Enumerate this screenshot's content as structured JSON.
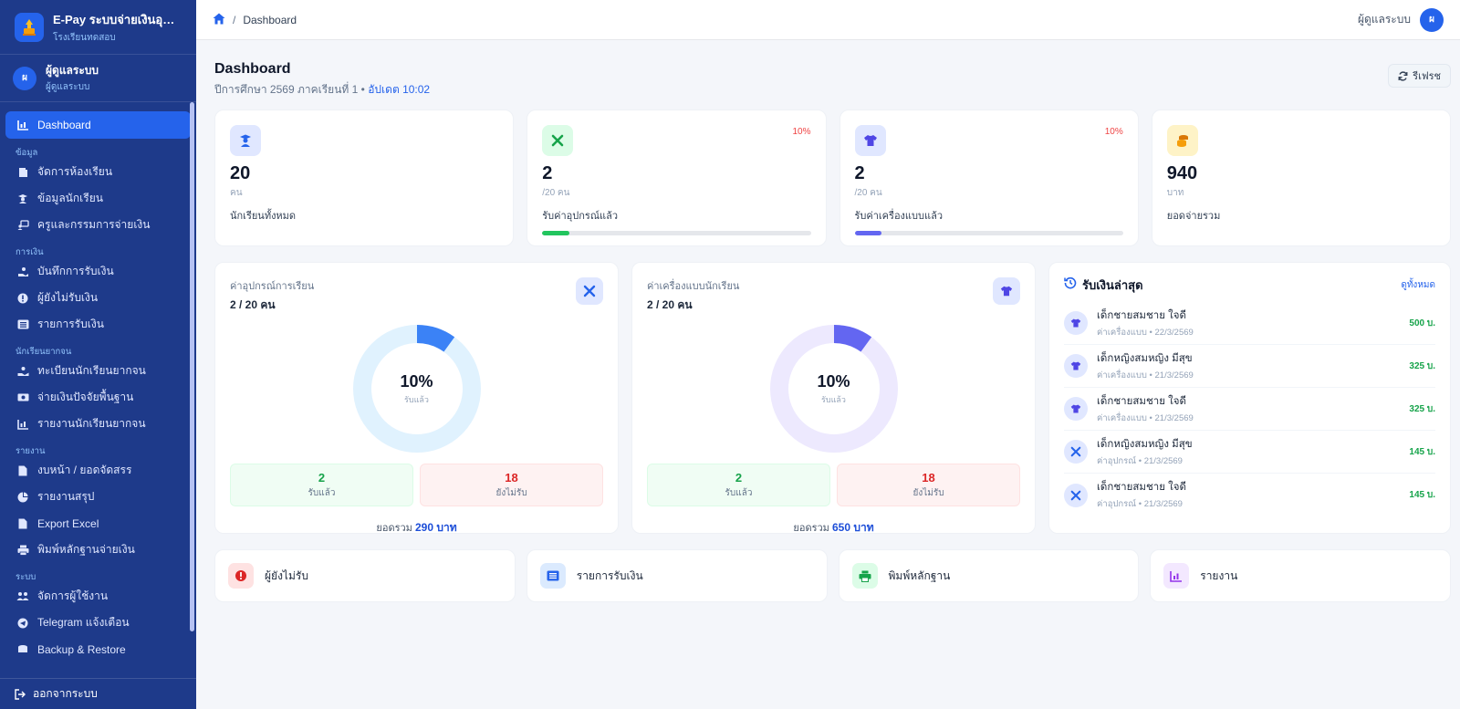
{
  "brand": {
    "title": "E-Pay ระบบจ่ายเงินอุดหนุ...",
    "subtitle": "โรงเรียนทดสอบ"
  },
  "sidebar_user": {
    "initial": "ผ",
    "name": "ผู้ดูแลระบบ",
    "role": "ผู้ดูแลระบบ"
  },
  "nav": {
    "dashboard": "Dashboard",
    "sec_data": "ข้อมูล",
    "classrooms": "จัดการห้องเรียน",
    "students": "ข้อมูลนักเรียน",
    "committee": "ครูและกรรมการจ่ายเงิน",
    "sec_finance": "การเงิน",
    "record_receive": "บันทึกการรับเงิน",
    "not_received": "ผู้ยังไม่รับเงิน",
    "receive_list": "รายการรับเงิน",
    "sec_poor": "นักเรียนยากจน",
    "poor_register": "ทะเบียนนักเรียนยากจน",
    "poor_pay": "จ่ายเงินปัจจัยพื้นฐาน",
    "poor_report": "รายงานนักเรียนยากจน",
    "sec_report": "รายงาน",
    "budget": "งบหน้า / ยอดจัดสรร",
    "summary": "รายงานสรุป",
    "export": "Export Excel",
    "print_evidence": "พิมพ์หลักฐานจ่ายเงิน",
    "sec_system": "ระบบ",
    "users": "จัดการผู้ใช้งาน",
    "telegram": "Telegram แจ้งเตือน",
    "backup": "Backup & Restore",
    "logout": "ออกจากระบบ"
  },
  "topbar": {
    "crumb": "Dashboard",
    "user": "ผู้ดูแลระบบ",
    "initial": "ผ"
  },
  "header": {
    "title": "Dashboard",
    "subtitle": "ปีการศึกษา 2569 ภาคเรียนที่ 1 •",
    "updated": "อัปเดต 10:02",
    "refresh": "รีเฟรช"
  },
  "stats": [
    {
      "value": "20",
      "unit": "คน",
      "label": "นักเรียนทั้งหมด"
    },
    {
      "value": "2",
      "unit": "/20 คน",
      "label": "รับค่าอุปกรณ์แล้ว",
      "pct": "10%",
      "progress": 0.1,
      "color": "#22c55e"
    },
    {
      "value": "2",
      "unit": "/20 คน",
      "label": "รับค่าเครื่องแบบแล้ว",
      "pct": "10%",
      "progress": 0.1,
      "color": "#6366f1"
    },
    {
      "value": "940",
      "unit": "บาท",
      "label": "ยอดจ่ายรวม"
    }
  ],
  "donuts": [
    {
      "title": "ค่าอุปกรณ์การเรียน",
      "count": "2 / 20 คน",
      "percent": "10%",
      "center_label": "รับแล้ว",
      "fraction": 0.1,
      "color": "#3b82f6",
      "track": "#e0f2fe",
      "received": "2",
      "received_label": "รับแล้ว",
      "pending": "18",
      "pending_label": "ยังไม่รับ",
      "total_prefix": "ยอดรวม",
      "total": "290 บาท"
    },
    {
      "title": "ค่าเครื่องแบบนักเรียน",
      "count": "2 / 20 คน",
      "percent": "10%",
      "center_label": "รับแล้ว",
      "fraction": 0.1,
      "color": "#6366f1",
      "track": "#ede9fe",
      "received": "2",
      "received_label": "รับแล้ว",
      "pending": "18",
      "pending_label": "ยังไม่รับ",
      "total_prefix": "ยอดรวม",
      "total": "650 บาท"
    }
  ],
  "recent": {
    "title": "รับเงินล่าสุด",
    "view_all": "ดูทั้งหมด",
    "items": [
      {
        "icon": "shirt-icon",
        "name": "เด็กชายสมชาย ใจดี",
        "meta": "ค่าเครื่องแบบ • 22/3/2569",
        "amount": "500 บ."
      },
      {
        "icon": "shirt-icon",
        "name": "เด็กหญิงสมหญิง มีสุข",
        "meta": "ค่าเครื่องแบบ • 21/3/2569",
        "amount": "325 บ."
      },
      {
        "icon": "shirt-icon",
        "name": "เด็กชายสมชาย ใจดี",
        "meta": "ค่าเครื่องแบบ • 21/3/2569",
        "amount": "325 บ."
      },
      {
        "icon": "tools-icon",
        "name": "เด็กหญิงสมหญิง มีสุข",
        "meta": "ค่าอุปกรณ์ • 21/3/2569",
        "amount": "145 บ."
      },
      {
        "icon": "tools-icon",
        "name": "เด็กชายสมชาย ใจดี",
        "meta": "ค่าอุปกรณ์ • 21/3/2569",
        "amount": "145 บ."
      }
    ]
  },
  "quick_links": [
    {
      "label": "ผู้ยังไม่รับ",
      "icon": "alert-icon"
    },
    {
      "label": "รายการรับเงิน",
      "icon": "list-icon"
    },
    {
      "label": "พิมพ์หลักฐาน",
      "icon": "printer-icon"
    },
    {
      "label": "รายงาน",
      "icon": "chart-icon"
    }
  ]
}
